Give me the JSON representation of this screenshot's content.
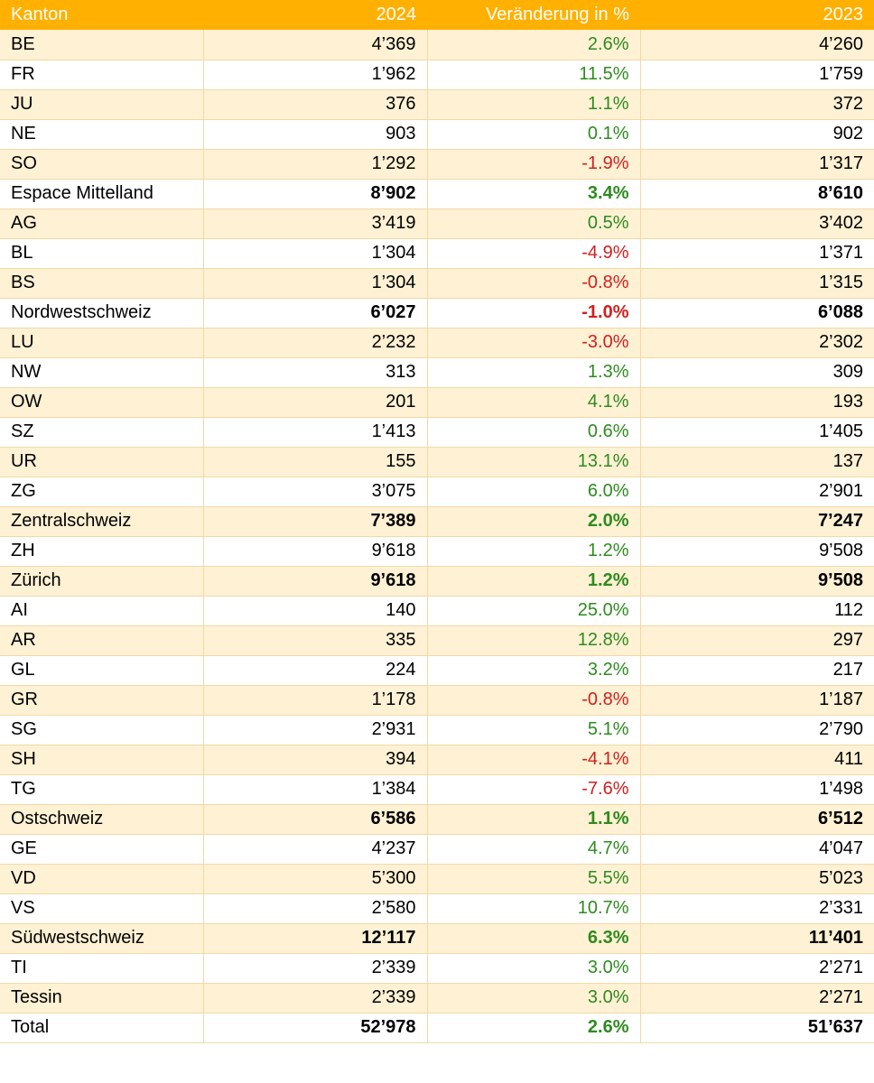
{
  "table": {
    "headers": [
      "Kanton",
      "2024",
      "Veränderung in %",
      "2023"
    ],
    "rows": [
      {
        "kanton": "BE",
        "y2024": "4’369",
        "change": "2.6%",
        "y2023": "4’260",
        "bold": false,
        "sign": "pos"
      },
      {
        "kanton": "FR",
        "y2024": "1’962",
        "change": "11.5%",
        "y2023": "1’759",
        "bold": false,
        "sign": "pos"
      },
      {
        "kanton": "JU",
        "y2024": "376",
        "change": "1.1%",
        "y2023": "372",
        "bold": false,
        "sign": "pos"
      },
      {
        "kanton": "NE",
        "y2024": "903",
        "change": "0.1%",
        "y2023": "902",
        "bold": false,
        "sign": "pos"
      },
      {
        "kanton": "SO",
        "y2024": "1’292",
        "change": "-1.9%",
        "y2023": "1’317",
        "bold": false,
        "sign": "neg"
      },
      {
        "kanton": "Espace Mittelland",
        "y2024": "8’902",
        "change": "3.4%",
        "y2023": "8’610",
        "bold": true,
        "sign": "pos"
      },
      {
        "kanton": "AG",
        "y2024": "3’419",
        "change": "0.5%",
        "y2023": "3’402",
        "bold": false,
        "sign": "pos"
      },
      {
        "kanton": "BL",
        "y2024": "1’304",
        "change": "-4.9%",
        "y2023": "1’371",
        "bold": false,
        "sign": "neg"
      },
      {
        "kanton": "BS",
        "y2024": "1’304",
        "change": "-0.8%",
        "y2023": "1’315",
        "bold": false,
        "sign": "neg"
      },
      {
        "kanton": "Nordwestschweiz",
        "y2024": "6’027",
        "change": "-1.0%",
        "y2023": "6’088",
        "bold": true,
        "sign": "neg"
      },
      {
        "kanton": "LU",
        "y2024": "2’232",
        "change": "-3.0%",
        "y2023": "2’302",
        "bold": false,
        "sign": "neg"
      },
      {
        "kanton": "NW",
        "y2024": "313",
        "change": "1.3%",
        "y2023": "309",
        "bold": false,
        "sign": "pos"
      },
      {
        "kanton": "OW",
        "y2024": "201",
        "change": "4.1%",
        "y2023": "193",
        "bold": false,
        "sign": "pos"
      },
      {
        "kanton": "SZ",
        "y2024": "1’413",
        "change": "0.6%",
        "y2023": "1’405",
        "bold": false,
        "sign": "pos"
      },
      {
        "kanton": "UR",
        "y2024": "155",
        "change": "13.1%",
        "y2023": "137",
        "bold": false,
        "sign": "pos"
      },
      {
        "kanton": "ZG",
        "y2024": "3’075",
        "change": "6.0%",
        "y2023": "2’901",
        "bold": false,
        "sign": "pos"
      },
      {
        "kanton": "Zentralschweiz",
        "y2024": "7’389",
        "change": "2.0%",
        "y2023": "7’247",
        "bold": true,
        "sign": "pos"
      },
      {
        "kanton": "ZH",
        "y2024": "9’618",
        "change": "1.2%",
        "y2023": "9’508",
        "bold": false,
        "sign": "pos"
      },
      {
        "kanton": "Zürich",
        "y2024": "9’618",
        "change": "1.2%",
        "y2023": "9’508",
        "bold": true,
        "sign": "pos"
      },
      {
        "kanton": "AI",
        "y2024": "140",
        "change": "25.0%",
        "y2023": "112",
        "bold": false,
        "sign": "pos"
      },
      {
        "kanton": "AR",
        "y2024": "335",
        "change": "12.8%",
        "y2023": "297",
        "bold": false,
        "sign": "pos"
      },
      {
        "kanton": "GL",
        "y2024": "224",
        "change": "3.2%",
        "y2023": "217",
        "bold": false,
        "sign": "pos"
      },
      {
        "kanton": "GR",
        "y2024": "1’178",
        "change": "-0.8%",
        "y2023": "1’187",
        "bold": false,
        "sign": "neg"
      },
      {
        "kanton": "SG",
        "y2024": "2’931",
        "change": "5.1%",
        "y2023": "2’790",
        "bold": false,
        "sign": "pos"
      },
      {
        "kanton": "SH",
        "y2024": "394",
        "change": "-4.1%",
        "y2023": "411",
        "bold": false,
        "sign": "neg"
      },
      {
        "kanton": "TG",
        "y2024": "1’384",
        "change": "-7.6%",
        "y2023": "1’498",
        "bold": false,
        "sign": "neg"
      },
      {
        "kanton": "Ostschweiz",
        "y2024": "6’586",
        "change": "1.1%",
        "y2023": "6’512",
        "bold": true,
        "sign": "pos"
      },
      {
        "kanton": "GE",
        "y2024": "4’237",
        "change": "4.7%",
        "y2023": "4’047",
        "bold": false,
        "sign": "pos"
      },
      {
        "kanton": "VD",
        "y2024": "5’300",
        "change": "5.5%",
        "y2023": "5’023",
        "bold": false,
        "sign": "pos"
      },
      {
        "kanton": "VS",
        "y2024": "2’580",
        "change": "10.7%",
        "y2023": "2’331",
        "bold": false,
        "sign": "pos"
      },
      {
        "kanton": "Südwestschweiz",
        "y2024": "12’117",
        "change": "6.3%",
        "y2023": "11’401",
        "bold": true,
        "sign": "pos"
      },
      {
        "kanton": "TI",
        "y2024": "2’339",
        "change": "3.0%",
        "y2023": "2’271",
        "bold": false,
        "sign": "pos"
      },
      {
        "kanton": "Tessin",
        "y2024": "2’339",
        "change": "3.0%",
        "y2023": "2’271",
        "bold": false,
        "sign": "pos"
      },
      {
        "kanton": "Total",
        "y2024": "52’978",
        "change": "2.6%",
        "y2023": "51’637",
        "bold": true,
        "sign": "pos"
      }
    ]
  },
  "colors": {
    "header_bg": "#ffb000",
    "band_bg": "#fff1d4",
    "positive": "#2e8b1f",
    "negative": "#d11f1f"
  }
}
